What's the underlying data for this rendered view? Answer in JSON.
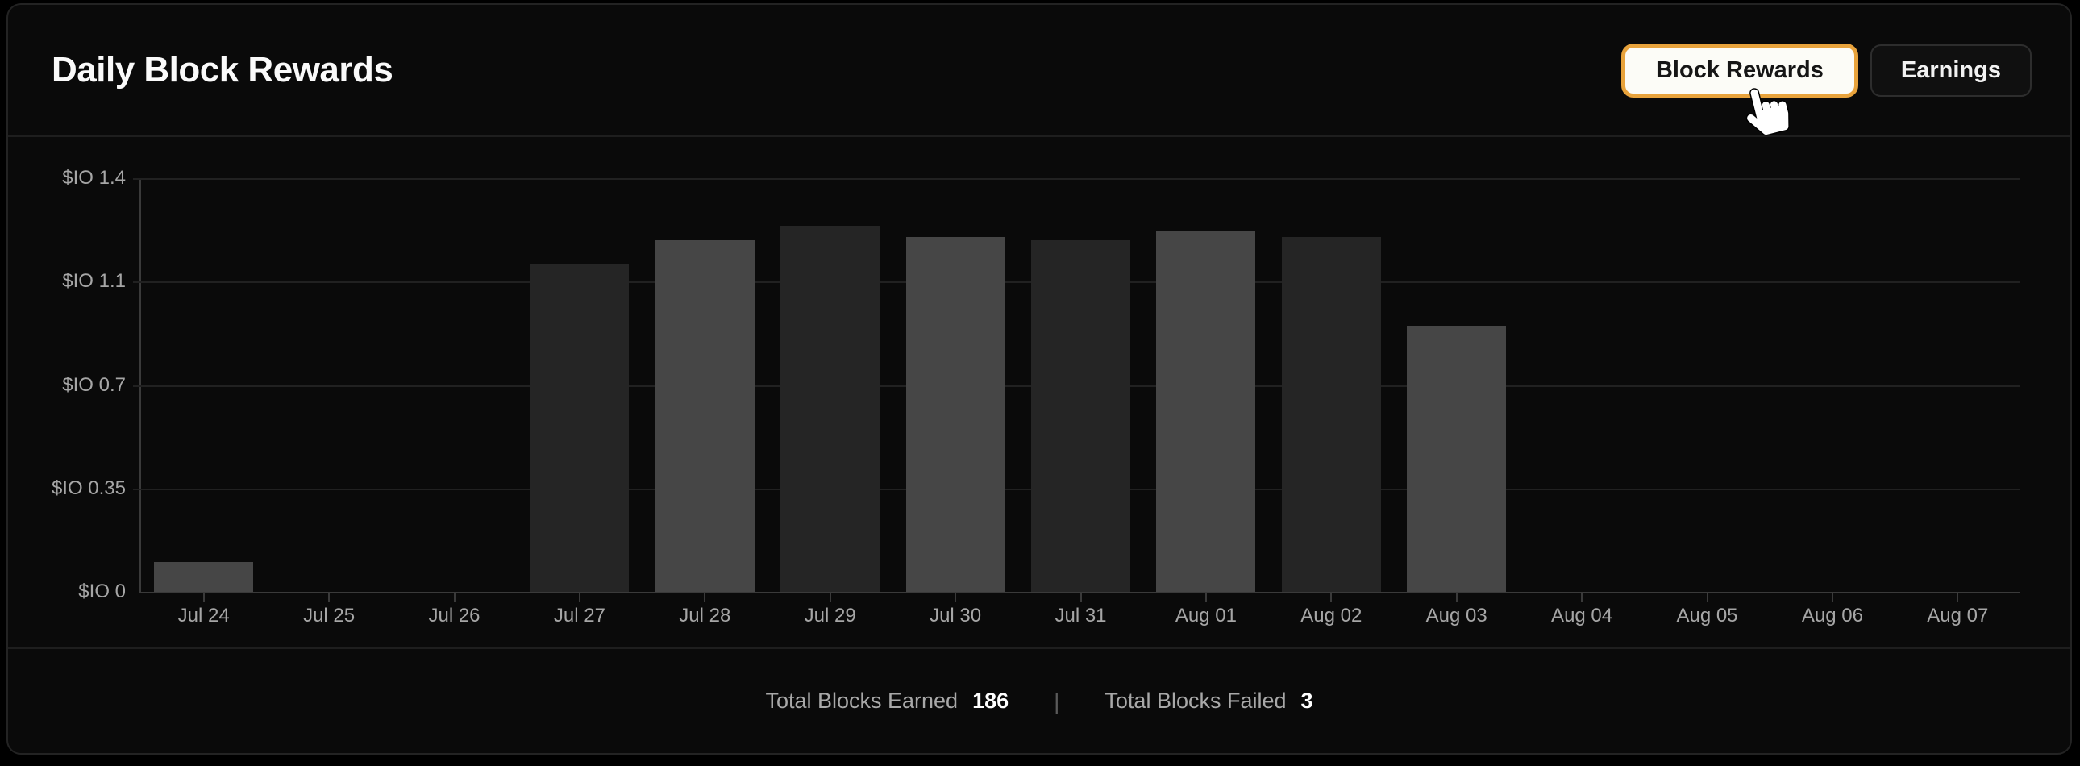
{
  "header": {
    "title": "Daily Block Rewards",
    "toggle": {
      "block_rewards_label": "Block Rewards",
      "earnings_label": "Earnings",
      "active": "Block Rewards"
    }
  },
  "chart_data": {
    "type": "bar",
    "title": "Daily Block Rewards",
    "categories": [
      "Jul 24",
      "Jul 25",
      "Jul 26",
      "Jul 27",
      "Jul 28",
      "Jul 29",
      "Jul 30",
      "Jul 31",
      "Aug 01",
      "Aug 02",
      "Aug 03",
      "Aug 04",
      "Aug 05",
      "Aug 06",
      "Aug 07"
    ],
    "values": [
      0.1,
      0,
      0,
      1.11,
      1.19,
      1.24,
      1.2,
      1.19,
      1.22,
      1.2,
      0.9,
      0,
      0,
      0,
      0
    ],
    "value_unit": "$IO",
    "xlabel": "",
    "ylabel": "",
    "ylim": [
      0,
      1.4
    ],
    "y_ticks": [
      0,
      0.35,
      0.7,
      1.05,
      1.4
    ],
    "y_tick_labels": [
      "$IO 0",
      "$IO 0.35",
      "$IO 0.7",
      "$IO 1.1",
      "$IO 1.4"
    ],
    "grid": true,
    "legend": false,
    "bar_color_even": "#464646",
    "bar_color_odd": "#252525"
  },
  "footer": {
    "earned_label": "Total Blocks Earned",
    "earned_value": "186",
    "separator": "|",
    "failed_label": "Total Blocks Failed",
    "failed_value": "3"
  },
  "colors": {
    "accent_orange": "#e8a33c",
    "active_button_bg": "#fcfcf7",
    "card_bg": "#0a0a0a",
    "gridline": "#212121",
    "axis": "#3a3a3a",
    "text_muted": "#a6a6a6"
  }
}
